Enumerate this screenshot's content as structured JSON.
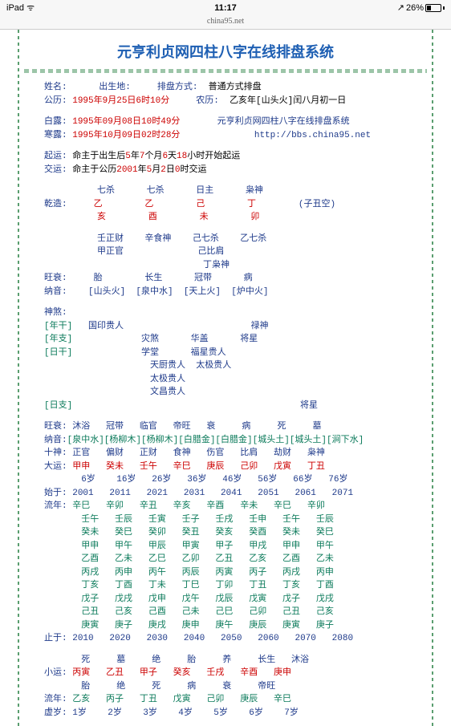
{
  "status": {
    "device": "iPad",
    "wifi": "ᯤ",
    "time": "11:17",
    "pct": "26%",
    "arrow": "↗"
  },
  "url": "china95.net",
  "title": "元亨利贞网四柱八字在线排盘系统",
  "basic": {
    "l1_a": "姓名:",
    "l1_b": "出生地:",
    "l1_c": "排盘方式:",
    "l1_d": "普通方式排盘",
    "gl_lbl": "公历:",
    "gl_v": "1995年9月25日6时10分",
    "nl_lbl": "农历:",
    "nl_v": "乙亥年[山头火]闰八月初一日",
    "bl_lbl": "白露:",
    "bl_v": "1995年09月08日10时49分",
    "bl_sys": "元亨利贞网四柱八字在线排盘系统",
    "hl_lbl": "寒露:",
    "hl_v": "1995年10月09日02时28分",
    "hl_url": "http://bbs.china95.net",
    "qy_lbl": "起运:",
    "qy_a": "命主于出生后",
    "qy_b": "5",
    "qy_c": "年",
    "qy_d": "7",
    "qy_e": "个月",
    "qy_f": "6",
    "qy_g": "天",
    "qy_h": "18",
    "qy_i": "小时开始起运",
    "jy_lbl": "交运:",
    "jy_a": "命主于公历",
    "jy_b": "2001",
    "jy_c": "年",
    "jy_d": "5",
    "jy_e": "月",
    "jy_f": "2",
    "jy_g": "日",
    "jy_h": "0",
    "jy_i": "时交运"
  },
  "pillars": {
    "hdr": "          七杀      七杀      日主      枭神",
    "qz": "乾造:",
    "gan": "     乙        乙        己        丁        ",
    "kong": "(子丑空)",
    "zhi": "          亥        酉        未        卯",
    "cg1": "          壬正财    辛食神    己七杀    乙七杀",
    "cg2": "          甲正官              己比肩",
    "cg3": "                              丁枭神",
    "ws_lbl": "旺衰:",
    "ws": "     胎        长生      冠带      病",
    "ny_lbl": "纳音:",
    "ny": "    [山头火]  [泉中水]  [天上火]  [炉中火]"
  },
  "shensha": {
    "lbl": "神煞:",
    "ng_lbl": "[年干]",
    "ng": "国印贵人                        禄神",
    "nz_lbl": "[年支]",
    "nz": "          灾煞      华盖      将星",
    "rg_lbl": "[日干]",
    "rg": "          学堂      福星贵人",
    "rg2": "                    天厨贵人  太极贵人",
    "rg3": "                    太极贵人",
    "rg4": "                    文昌贵人",
    "rz_lbl": "[日支]",
    "rz": "                                        将星"
  },
  "ws2_lbl": "旺衰:",
  "ws2": "沐浴   冠带   临官   帝旺   衰     病     死     墓",
  "ny2_lbl": "纳音:",
  "ny2": "[泉中水][杨柳木][杨柳木][白腊金][白腊金][城头土][城头土][涧下水]",
  "ss_lbl": "十神:",
  "ss_v": "正官   偏财   正财   食神   伤官   比肩   劫财   枭神",
  "dy_lbl": "大运:",
  "dy_gan": "甲申   癸未   壬午   辛巳   庚辰   己卯   戊寅   丁丑",
  "dy_age": "       6岁    16岁   26岁   36岁   46岁   56岁   66岁   76岁",
  "sy_lbl": "始于:",
  "sy_v": "2001   2011   2021   2031   2041   2051   2061   2071",
  "ln_lbl": "流年:",
  "ln1": "辛巳   辛卯   辛丑   辛亥   辛酉   辛未   辛巳   辛卯",
  "ln2": "       壬午   壬辰   壬寅   壬子   壬戌   壬申   壬午   壬辰",
  "ln3": "       癸未   癸巳   癸卯   癸丑   癸亥   癸酉   癸未   癸巳",
  "ln4": "       甲申   甲午   甲辰   甲寅   甲子   甲戌   甲申   甲午",
  "ln5": "       乙酉   乙未   乙巳   乙卯   乙丑   乙亥   乙酉   乙未",
  "ln6": "       丙戌   丙申   丙午   丙辰   丙寅   丙子   丙戌   丙申",
  "ln7": "       丁亥   丁酉   丁未   丁巳   丁卯   丁丑   丁亥   丁酉",
  "ln8": "       戊子   戊戌   戊申   戊午   戊辰   戊寅   戊子   戊戌",
  "ln9": "       己丑   己亥   己酉   己未   己巳   己卯   己丑   己亥",
  "ln10": "       庚寅   庚子   庚戌   庚申   庚午   庚辰   庚寅   庚子",
  "zy_lbl": "止于:",
  "zy_v": "2010   2020   2030   2040   2050   2060   2070   2080",
  "xy_ws": "       死     墓     绝     胎     养     长生   沐浴",
  "xy_lbl": "小运:",
  "xy_v": "丙寅   乙丑   甲子   癸亥   壬戌   辛酉   庚申",
  "xy_ws2": "       胎     绝     死     病     衰     帝旺",
  "ln2_lbl": "流年:",
  "ln2_v": "乙亥   丙子   丁丑   戊寅   己卯   庚辰   辛巳",
  "xs_lbl": "虚岁:",
  "xs_v": "1岁    2岁    3岁    4岁    5岁    6岁    7岁"
}
